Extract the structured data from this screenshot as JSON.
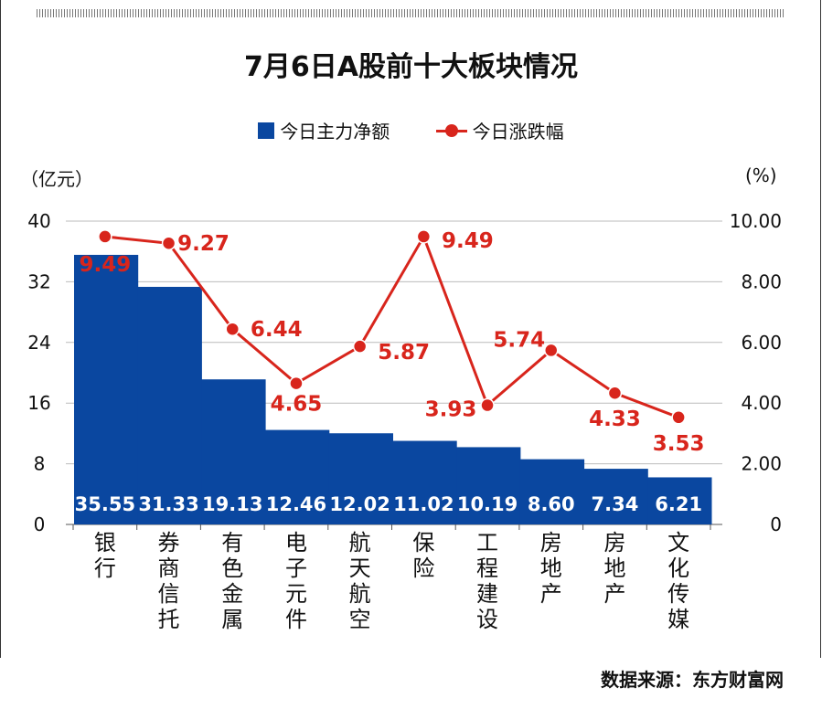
{
  "title": "7月6日A股前十大板块情况",
  "legend": {
    "bar": "今日主力净额",
    "line": "今日涨跌幅"
  },
  "units": {
    "left": "（亿元）",
    "right": "(%)"
  },
  "source": "数据来源：东方财富网",
  "colors": {
    "bar": "#0a47a0",
    "line": "#d8251c",
    "bar_label": "#ffffff"
  },
  "chart_data": {
    "type": "bar",
    "title": "7月6日A股前十大板块情况",
    "categories": [
      "银行",
      "券商信托",
      "有色金属",
      "电子元件",
      "航天航空",
      "保险",
      "工程建设",
      "房地产",
      "房地产",
      "文化传媒"
    ],
    "series": [
      {
        "name": "今日主力净额",
        "type": "bar",
        "axis": "left",
        "values": [
          35.55,
          31.33,
          19.13,
          12.46,
          12.02,
          11.02,
          10.19,
          8.6,
          7.34,
          6.21
        ]
      },
      {
        "name": "今日涨跌幅",
        "type": "line",
        "axis": "right",
        "values": [
          9.49,
          9.27,
          6.44,
          4.65,
          5.87,
          9.49,
          3.93,
          5.74,
          4.33,
          3.53
        ]
      }
    ],
    "left_axis": {
      "ylim": [
        0,
        40
      ],
      "ticks": [
        "0",
        "8",
        "16",
        "24",
        "32",
        "40"
      ],
      "unit": "（亿元）"
    },
    "right_axis": {
      "ylim": [
        0,
        10
      ],
      "ticks": [
        "0",
        "2.00",
        "4.00",
        "6.00",
        "8.00",
        "10.00"
      ],
      "unit": "(%)"
    },
    "bar_labels": [
      "35.55",
      "31.33",
      "19.13",
      "12.46",
      "12.02",
      "11.02",
      "10.19",
      "8.60",
      "7.34",
      "6.21"
    ],
    "line_labels": [
      "9.49",
      "9.27",
      "6.44",
      "4.65",
      "5.87",
      "9.49",
      "3.93",
      "5.74",
      "4.33",
      "3.53"
    ],
    "grid": true,
    "legend_position": "top-center"
  }
}
